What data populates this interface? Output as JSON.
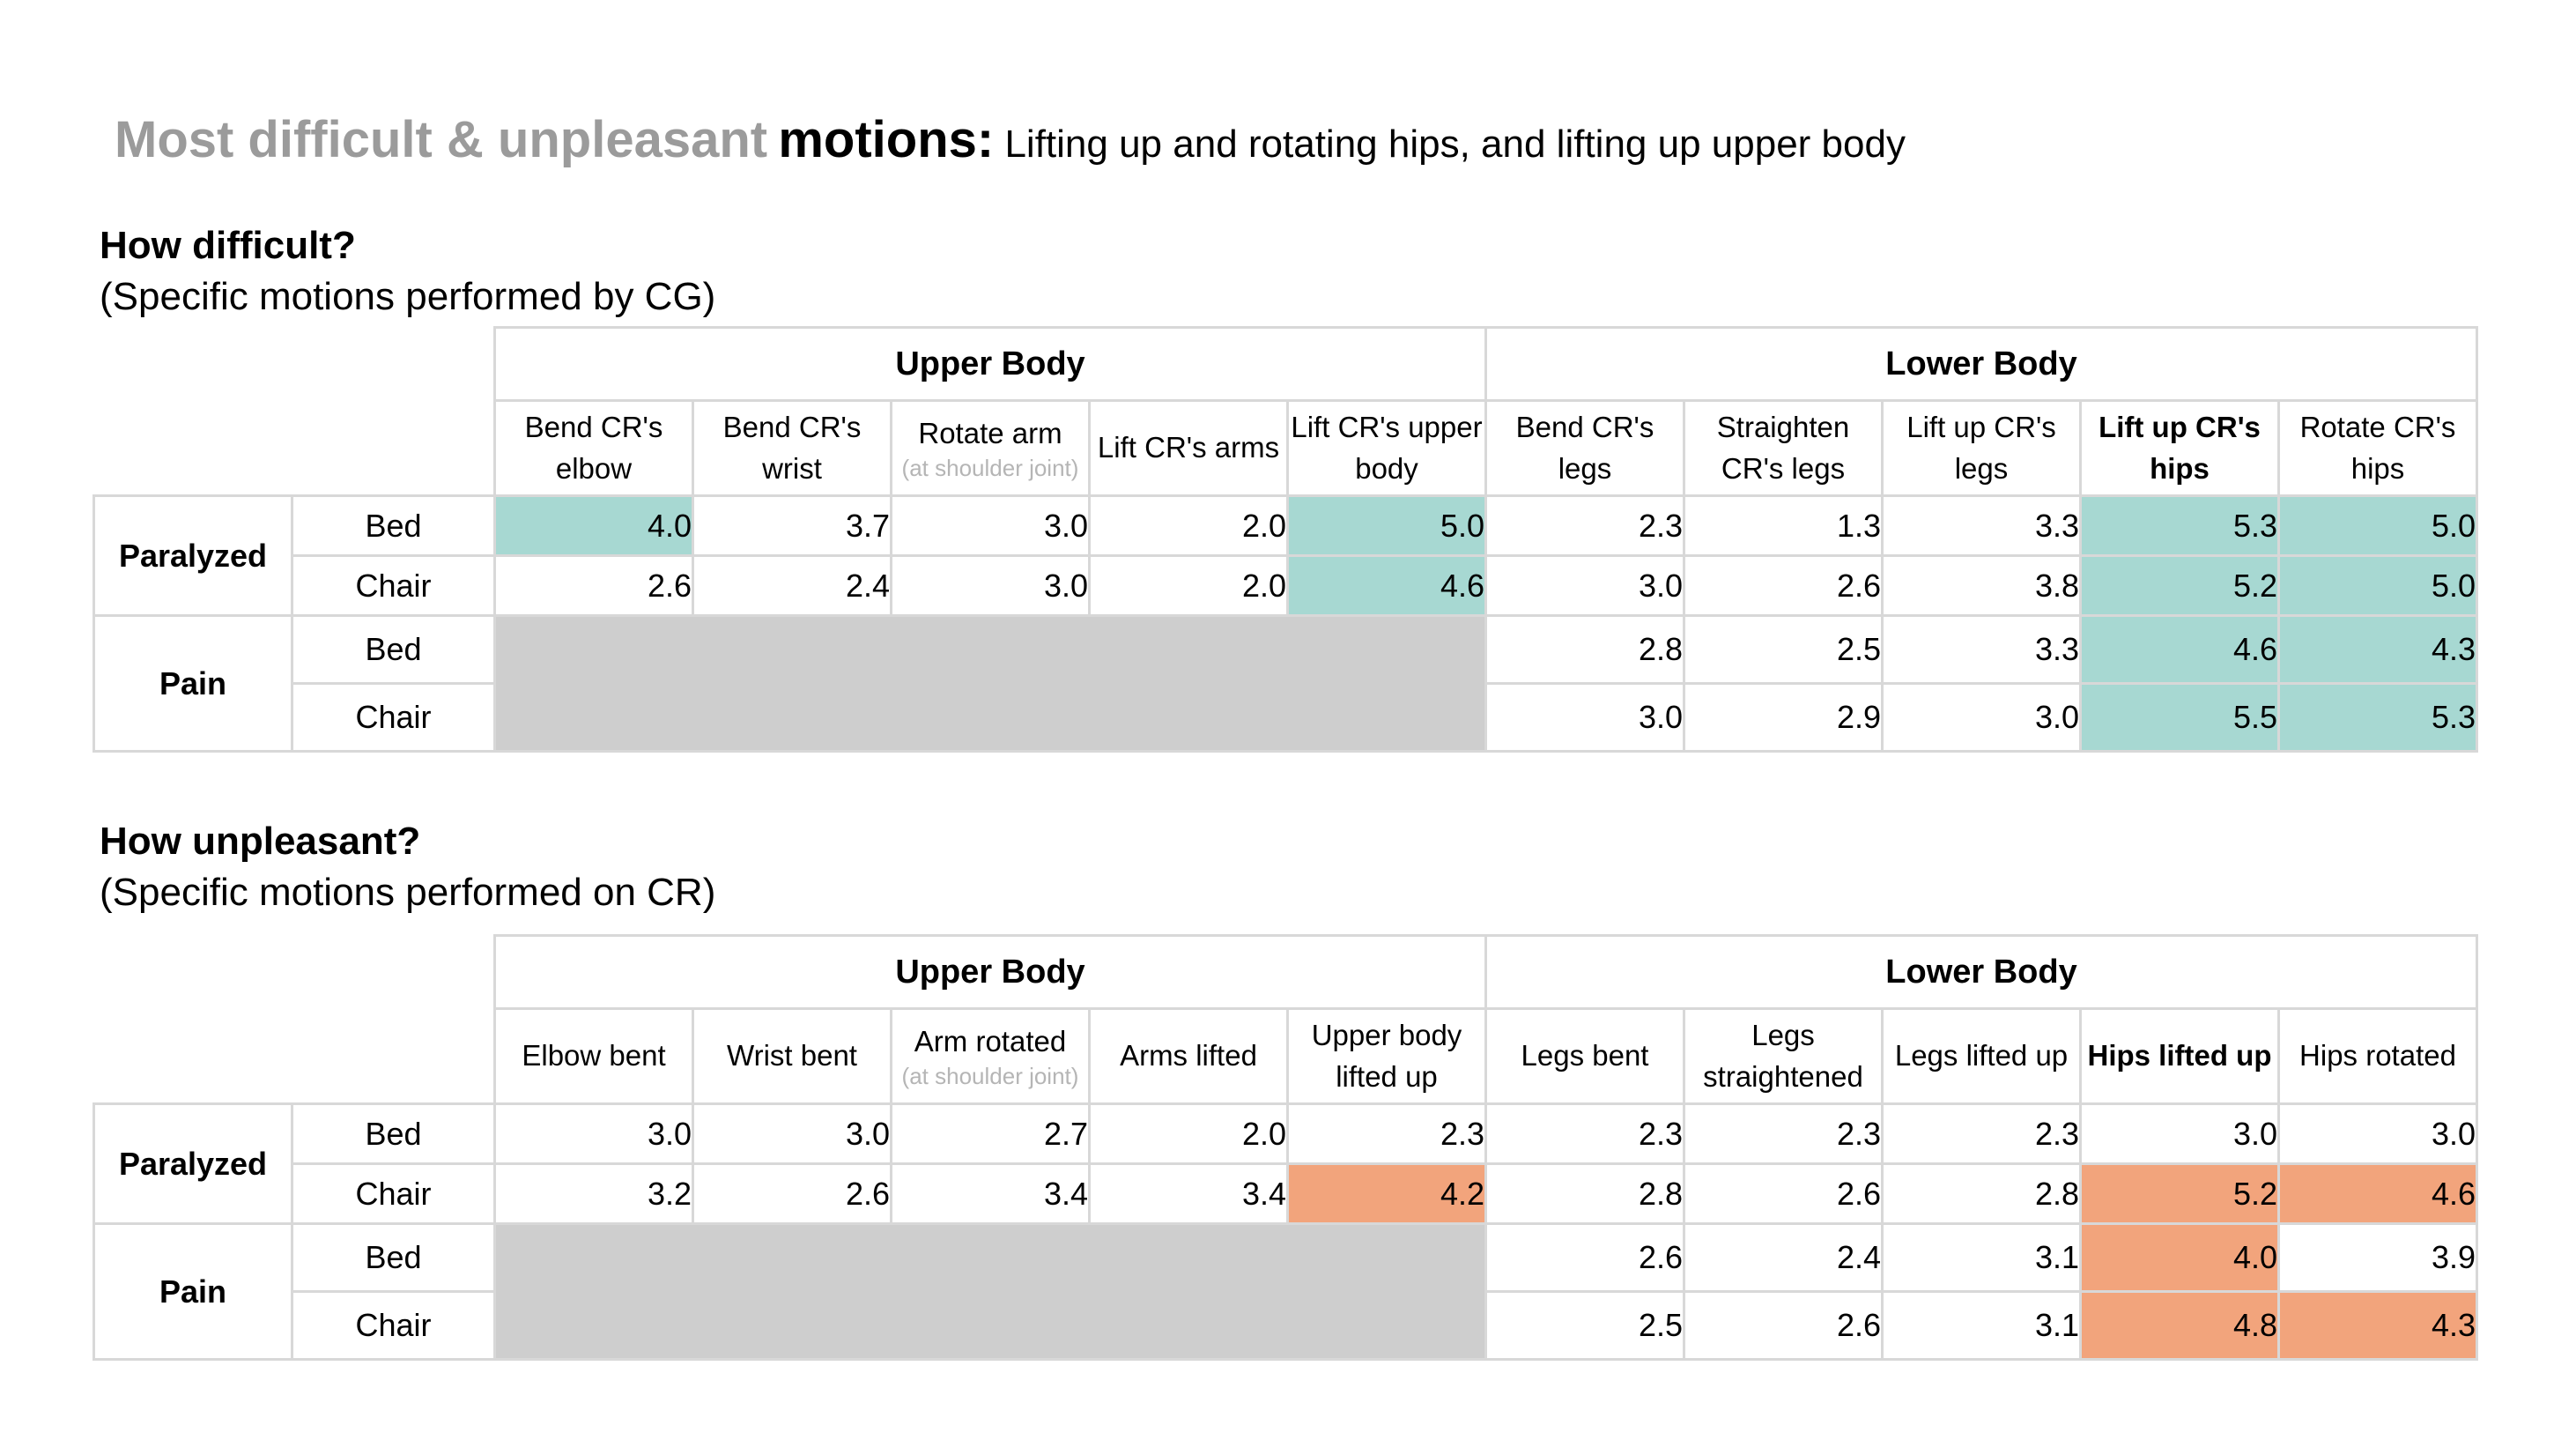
{
  "title": {
    "muted": "Most difficult & unpleasant",
    "emphasis": "motions:",
    "description": "Lifting up and rotating hips, and lifting up upper body"
  },
  "colors": {
    "teal": "#a7d8d2",
    "orange": "#f2a47c",
    "disabled": "#cecece",
    "border": "#d8d8d8",
    "muted_title": "#9b9b9b",
    "note_text": "#b5b5b5"
  },
  "sections": [
    {
      "heading": "How difficult?",
      "subheading": "(Specific motions performed by CG)",
      "highlight": "teal",
      "groups": [
        "Upper Body",
        "Lower Body"
      ],
      "columns": [
        {
          "label": "Bend CR's elbow"
        },
        {
          "label": "Bend CR's wrist"
        },
        {
          "label": "Rotate arm",
          "note": "(at shoulder joint)"
        },
        {
          "label": "Lift CR's arms"
        },
        {
          "label": "Lift CR's upper body"
        },
        {
          "label": "Bend CR's legs"
        },
        {
          "label": "Straighten CR's legs"
        },
        {
          "label": "Lift up CR's legs"
        },
        {
          "label": "Lift up CR's hips",
          "bold": true
        },
        {
          "label": "Rotate CR's hips"
        }
      ],
      "row_groups": [
        {
          "label": "Paralyzed",
          "rows": [
            {
              "label": "Bed",
              "cells": [
                {
                  "v": "4.0",
                  "h": true
                },
                {
                  "v": "3.7"
                },
                {
                  "v": "3.0"
                },
                {
                  "v": "2.0"
                },
                {
                  "v": "5.0",
                  "h": true
                },
                {
                  "v": "2.3"
                },
                {
                  "v": "1.3"
                },
                {
                  "v": "3.3"
                },
                {
                  "v": "5.3",
                  "h": true
                },
                {
                  "v": "5.0",
                  "h": true
                }
              ]
            },
            {
              "label": "Chair",
              "cells": [
                {
                  "v": "2.6"
                },
                {
                  "v": "2.4"
                },
                {
                  "v": "3.0"
                },
                {
                  "v": "2.0"
                },
                {
                  "v": "4.6",
                  "h": true
                },
                {
                  "v": "3.0"
                },
                {
                  "v": "2.6"
                },
                {
                  "v": "3.8"
                },
                {
                  "v": "5.2",
                  "h": true
                },
                {
                  "v": "5.0",
                  "h": true
                }
              ]
            }
          ]
        },
        {
          "label": "Pain",
          "disabled_span": 5,
          "rows": [
            {
              "label": "Bed",
              "cells": [
                null,
                null,
                null,
                null,
                null,
                {
                  "v": "2.8"
                },
                {
                  "v": "2.5"
                },
                {
                  "v": "3.3"
                },
                {
                  "v": "4.6",
                  "h": true
                },
                {
                  "v": "4.3",
                  "h": true
                }
              ]
            },
            {
              "label": "Chair",
              "cells": [
                null,
                null,
                null,
                null,
                null,
                {
                  "v": "3.0"
                },
                {
                  "v": "2.9"
                },
                {
                  "v": "3.0"
                },
                {
                  "v": "5.5",
                  "h": true
                },
                {
                  "v": "5.3",
                  "h": true
                }
              ]
            }
          ]
        }
      ]
    },
    {
      "heading": "How unpleasant?",
      "subheading": "(Specific motions performed on CR)",
      "highlight": "orange",
      "groups": [
        "Upper Body",
        "Lower Body"
      ],
      "columns": [
        {
          "label": "Elbow bent"
        },
        {
          "label": "Wrist bent"
        },
        {
          "label": "Arm rotated",
          "note": "(at shoulder joint)"
        },
        {
          "label": "Arms lifted"
        },
        {
          "label": "Upper body lifted up"
        },
        {
          "label": "Legs bent"
        },
        {
          "label": "Legs straightened"
        },
        {
          "label": "Legs lifted up"
        },
        {
          "label": "Hips lifted up",
          "bold": true
        },
        {
          "label": "Hips rotated"
        }
      ],
      "row_groups": [
        {
          "label": "Paralyzed",
          "rows": [
            {
              "label": "Bed",
              "cells": [
                {
                  "v": "3.0"
                },
                {
                  "v": "3.0"
                },
                {
                  "v": "2.7"
                },
                {
                  "v": "2.0"
                },
                {
                  "v": "2.3"
                },
                {
                  "v": "2.3"
                },
                {
                  "v": "2.3"
                },
                {
                  "v": "2.3"
                },
                {
                  "v": "3.0"
                },
                {
                  "v": "3.0"
                }
              ]
            },
            {
              "label": "Chair",
              "cells": [
                {
                  "v": "3.2"
                },
                {
                  "v": "2.6"
                },
                {
                  "v": "3.4"
                },
                {
                  "v": "3.4"
                },
                {
                  "v": "4.2",
                  "h": true
                },
                {
                  "v": "2.8"
                },
                {
                  "v": "2.6"
                },
                {
                  "v": "2.8"
                },
                {
                  "v": "5.2",
                  "h": true
                },
                {
                  "v": "4.6",
                  "h": true
                }
              ]
            }
          ]
        },
        {
          "label": "Pain",
          "disabled_span": 5,
          "rows": [
            {
              "label": "Bed",
              "cells": [
                null,
                null,
                null,
                null,
                null,
                {
                  "v": "2.6"
                },
                {
                  "v": "2.4"
                },
                {
                  "v": "3.1"
                },
                {
                  "v": "4.0",
                  "h": true
                },
                {
                  "v": "3.9"
                }
              ]
            },
            {
              "label": "Chair",
              "cells": [
                null,
                null,
                null,
                null,
                null,
                {
                  "v": "2.5"
                },
                {
                  "v": "2.6"
                },
                {
                  "v": "3.1"
                },
                {
                  "v": "4.8",
                  "h": true
                },
                {
                  "v": "4.3",
                  "h": true
                }
              ]
            }
          ]
        }
      ]
    }
  ]
}
